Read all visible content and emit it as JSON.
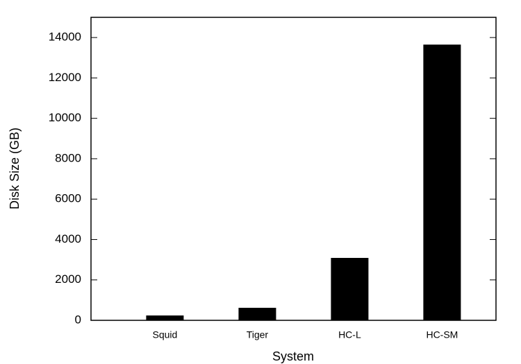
{
  "chart_data": {
    "type": "bar",
    "x_label": "System",
    "y_label": "Disk Size (GB)",
    "categories": [
      "Squid",
      "Tiger",
      "HC-L",
      "HC-SM"
    ],
    "values": [
      240,
      620,
      3090,
      13650
    ],
    "color": "#000000",
    "ylim": [
      0,
      15000
    ],
    "yticks": [
      0,
      2000,
      4000,
      6000,
      8000,
      10000,
      12000,
      14000
    ],
    "grid": false
  }
}
